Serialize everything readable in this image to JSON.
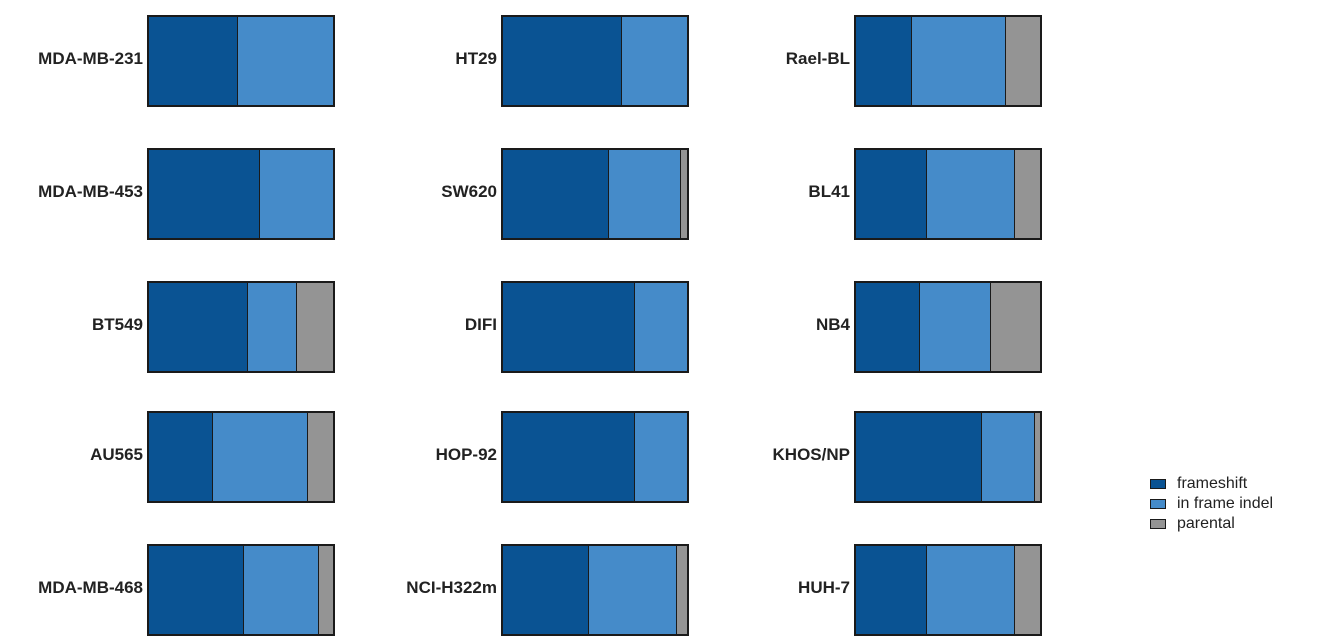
{
  "chart_data": {
    "type": "bar",
    "stacked": true,
    "orientation": "horizontal",
    "normalized": true,
    "series": [
      {
        "name": "frameshift",
        "color": "#0a5393"
      },
      {
        "name": "in frame indel",
        "color": "#458bc9"
      },
      {
        "name": "parental",
        "color": "#949494"
      }
    ],
    "panels": [
      {
        "label": "MDA-MB-231",
        "values": [
          0.48,
          0.52,
          0.0
        ]
      },
      {
        "label": "MDA-MB-453",
        "values": [
          0.6,
          0.4,
          0.0
        ]
      },
      {
        "label": "BT549",
        "values": [
          0.53,
          0.27,
          0.2
        ]
      },
      {
        "label": "AU565",
        "values": [
          0.34,
          0.52,
          0.14
        ]
      },
      {
        "label": "MDA-MB-468",
        "values": [
          0.51,
          0.41,
          0.08
        ]
      },
      {
        "label": "HT29",
        "values": [
          0.64,
          0.36,
          0.0
        ]
      },
      {
        "label": "SW620",
        "values": [
          0.57,
          0.39,
          0.04
        ]
      },
      {
        "label": "DIFI",
        "values": [
          0.71,
          0.29,
          0.0
        ]
      },
      {
        "label": "HOP-92",
        "values": [
          0.71,
          0.29,
          0.0
        ]
      },
      {
        "label": "NCI-H322m",
        "values": [
          0.46,
          0.48,
          0.06
        ]
      },
      {
        "label": "Rael-BL",
        "values": [
          0.3,
          0.51,
          0.19
        ]
      },
      {
        "label": "BL41",
        "values": [
          0.38,
          0.48,
          0.14
        ]
      },
      {
        "label": "NB4",
        "values": [
          0.34,
          0.39,
          0.27
        ]
      },
      {
        "label": "KHOS/NP",
        "values": [
          0.68,
          0.29,
          0.03
        ]
      },
      {
        "label": "HUH-7",
        "values": [
          0.38,
          0.48,
          0.14
        ]
      }
    ],
    "legend_position": "right",
    "grid": false
  }
}
